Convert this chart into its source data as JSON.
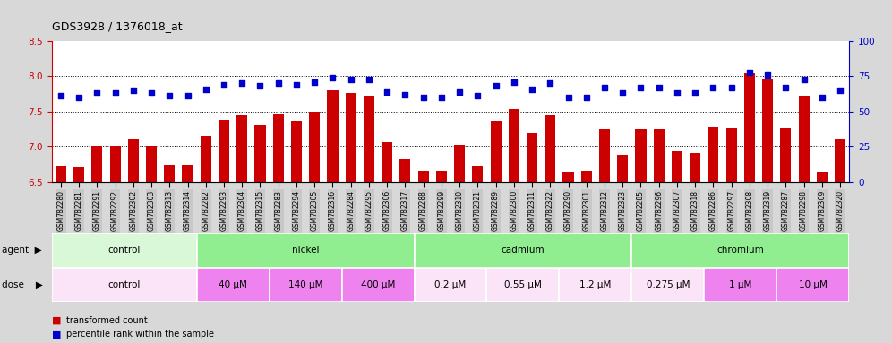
{
  "title": "GDS3928 / 1376018_at",
  "samples": [
    "GSM782280",
    "GSM782281",
    "GSM782291",
    "GSM782292",
    "GSM782302",
    "GSM782303",
    "GSM782313",
    "GSM782314",
    "GSM782282",
    "GSM782293",
    "GSM782304",
    "GSM782315",
    "GSM782283",
    "GSM782294",
    "GSM782305",
    "GSM782316",
    "GSM782284",
    "GSM782295",
    "GSM782306",
    "GSM782317",
    "GSM782288",
    "GSM782299",
    "GSM782310",
    "GSM782321",
    "GSM782289",
    "GSM782300",
    "GSM782311",
    "GSM782322",
    "GSM782290",
    "GSM782301",
    "GSM782312",
    "GSM782323",
    "GSM782285",
    "GSM782296",
    "GSM782307",
    "GSM782318",
    "GSM782286",
    "GSM782297",
    "GSM782308",
    "GSM782319",
    "GSM782287",
    "GSM782298",
    "GSM782309",
    "GSM782320"
  ],
  "bar_values": [
    6.72,
    6.71,
    7.0,
    7.0,
    7.11,
    7.01,
    6.73,
    6.73,
    7.15,
    7.38,
    7.45,
    7.31,
    7.46,
    7.36,
    7.5,
    7.8,
    7.76,
    7.73,
    7.07,
    6.82,
    6.64,
    6.64,
    7.03,
    6.72,
    7.37,
    7.53,
    7.19,
    7.45,
    6.63,
    6.64,
    7.25,
    6.88,
    7.26,
    7.25,
    6.94,
    6.91,
    7.28,
    7.27,
    8.04,
    7.97,
    7.27,
    7.72,
    6.63,
    7.1
  ],
  "dot_values": [
    61,
    60,
    63,
    63,
    65,
    63,
    61,
    61,
    66,
    69,
    70,
    68,
    70,
    69,
    71,
    74,
    73,
    73,
    64,
    62,
    60,
    60,
    64,
    61,
    68,
    71,
    66,
    70,
    60,
    60,
    67,
    63,
    67,
    67,
    63,
    63,
    67,
    67,
    78,
    76,
    67,
    73,
    60,
    65
  ],
  "bar_color": "#cc0000",
  "dot_color": "#0000cc",
  "ylim_left": [
    6.5,
    8.5
  ],
  "ylim_right": [
    0,
    100
  ],
  "yticks_left": [
    6.5,
    7.0,
    7.5,
    8.0,
    8.5
  ],
  "yticks_right": [
    0,
    25,
    50,
    75,
    100
  ],
  "grid_lines": [
    7.0,
    7.5,
    8.0
  ],
  "agent_groups": [
    {
      "label": "control",
      "start": 0,
      "end": 8,
      "color": "#d8f8d8"
    },
    {
      "label": "nickel",
      "start": 8,
      "end": 20,
      "color": "#90ee90"
    },
    {
      "label": "cadmium",
      "start": 20,
      "end": 32,
      "color": "#90ee90"
    },
    {
      "label": "chromium",
      "start": 32,
      "end": 44,
      "color": "#90ee90"
    }
  ],
  "dose_groups": [
    {
      "label": "control",
      "start": 0,
      "end": 8,
      "color": "#fce4f8"
    },
    {
      "label": "40 μM",
      "start": 8,
      "end": 12,
      "color": "#ee82ee"
    },
    {
      "label": "140 μM",
      "start": 12,
      "end": 16,
      "color": "#ee82ee"
    },
    {
      "label": "400 μM",
      "start": 16,
      "end": 20,
      "color": "#ee82ee"
    },
    {
      "label": "0.2 μM",
      "start": 20,
      "end": 24,
      "color": "#fce4f8"
    },
    {
      "label": "0.55 μM",
      "start": 24,
      "end": 28,
      "color": "#fce4f8"
    },
    {
      "label": "1.2 μM",
      "start": 28,
      "end": 32,
      "color": "#fce4f8"
    },
    {
      "label": "0.275 μM",
      "start": 32,
      "end": 36,
      "color": "#fce4f8"
    },
    {
      "label": "1 μM",
      "start": 36,
      "end": 40,
      "color": "#ee82ee"
    },
    {
      "label": "10 μM",
      "start": 40,
      "end": 44,
      "color": "#ee82ee"
    }
  ],
  "background_color": "#d8d8d8",
  "plot_bg_color": "#ffffff",
  "tick_bg_color": "#c8c8c8"
}
